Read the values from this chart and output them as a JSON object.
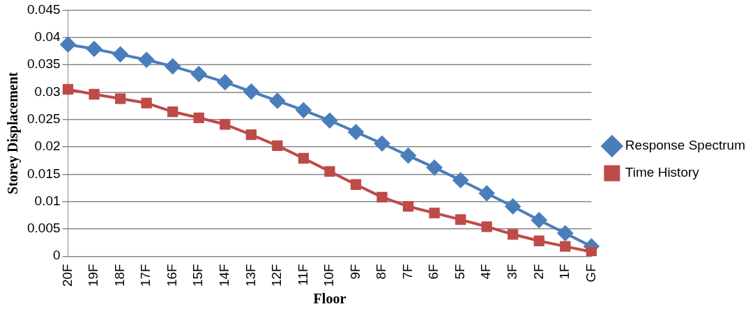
{
  "chart_data": {
    "type": "line",
    "xlabel": "Floor",
    "ylabel": "Storey Displacement",
    "categories": [
      "20F",
      "19F",
      "18F",
      "17F",
      "16F",
      "15F",
      "14F",
      "13F",
      "12F",
      "11F",
      "10F",
      "9F",
      "8F",
      "7F",
      "6F",
      "5F",
      "4F",
      "3F",
      "2F",
      "1F",
      "GF"
    ],
    "series": [
      {
        "name": "Response Spectrum",
        "color": "#4a7ebb",
        "marker": "diamond",
        "values": [
          0.0387,
          0.0379,
          0.0369,
          0.0359,
          0.0347,
          0.0333,
          0.0318,
          0.0301,
          0.0284,
          0.0267,
          0.0248,
          0.0227,
          0.0206,
          0.0184,
          0.0162,
          0.0139,
          0.0115,
          0.0091,
          0.0066,
          0.0042,
          0.0018
        ]
      },
      {
        "name": "Time History",
        "color": "#be4b48",
        "marker": "square",
        "values": [
          0.0305,
          0.0296,
          0.0288,
          0.028,
          0.0264,
          0.0253,
          0.0241,
          0.0222,
          0.0202,
          0.0179,
          0.0155,
          0.0131,
          0.0108,
          0.0091,
          0.0079,
          0.0067,
          0.0054,
          0.004,
          0.0028,
          0.0018,
          0.0008
        ]
      }
    ],
    "ylim": [
      0,
      0.045
    ],
    "yticks": [
      0,
      0.005,
      0.01,
      0.015,
      0.02,
      0.025,
      0.03,
      0.035,
      0.04,
      0.045
    ],
    "grid": "y",
    "legend": "right",
    "line_style": "solid"
  }
}
